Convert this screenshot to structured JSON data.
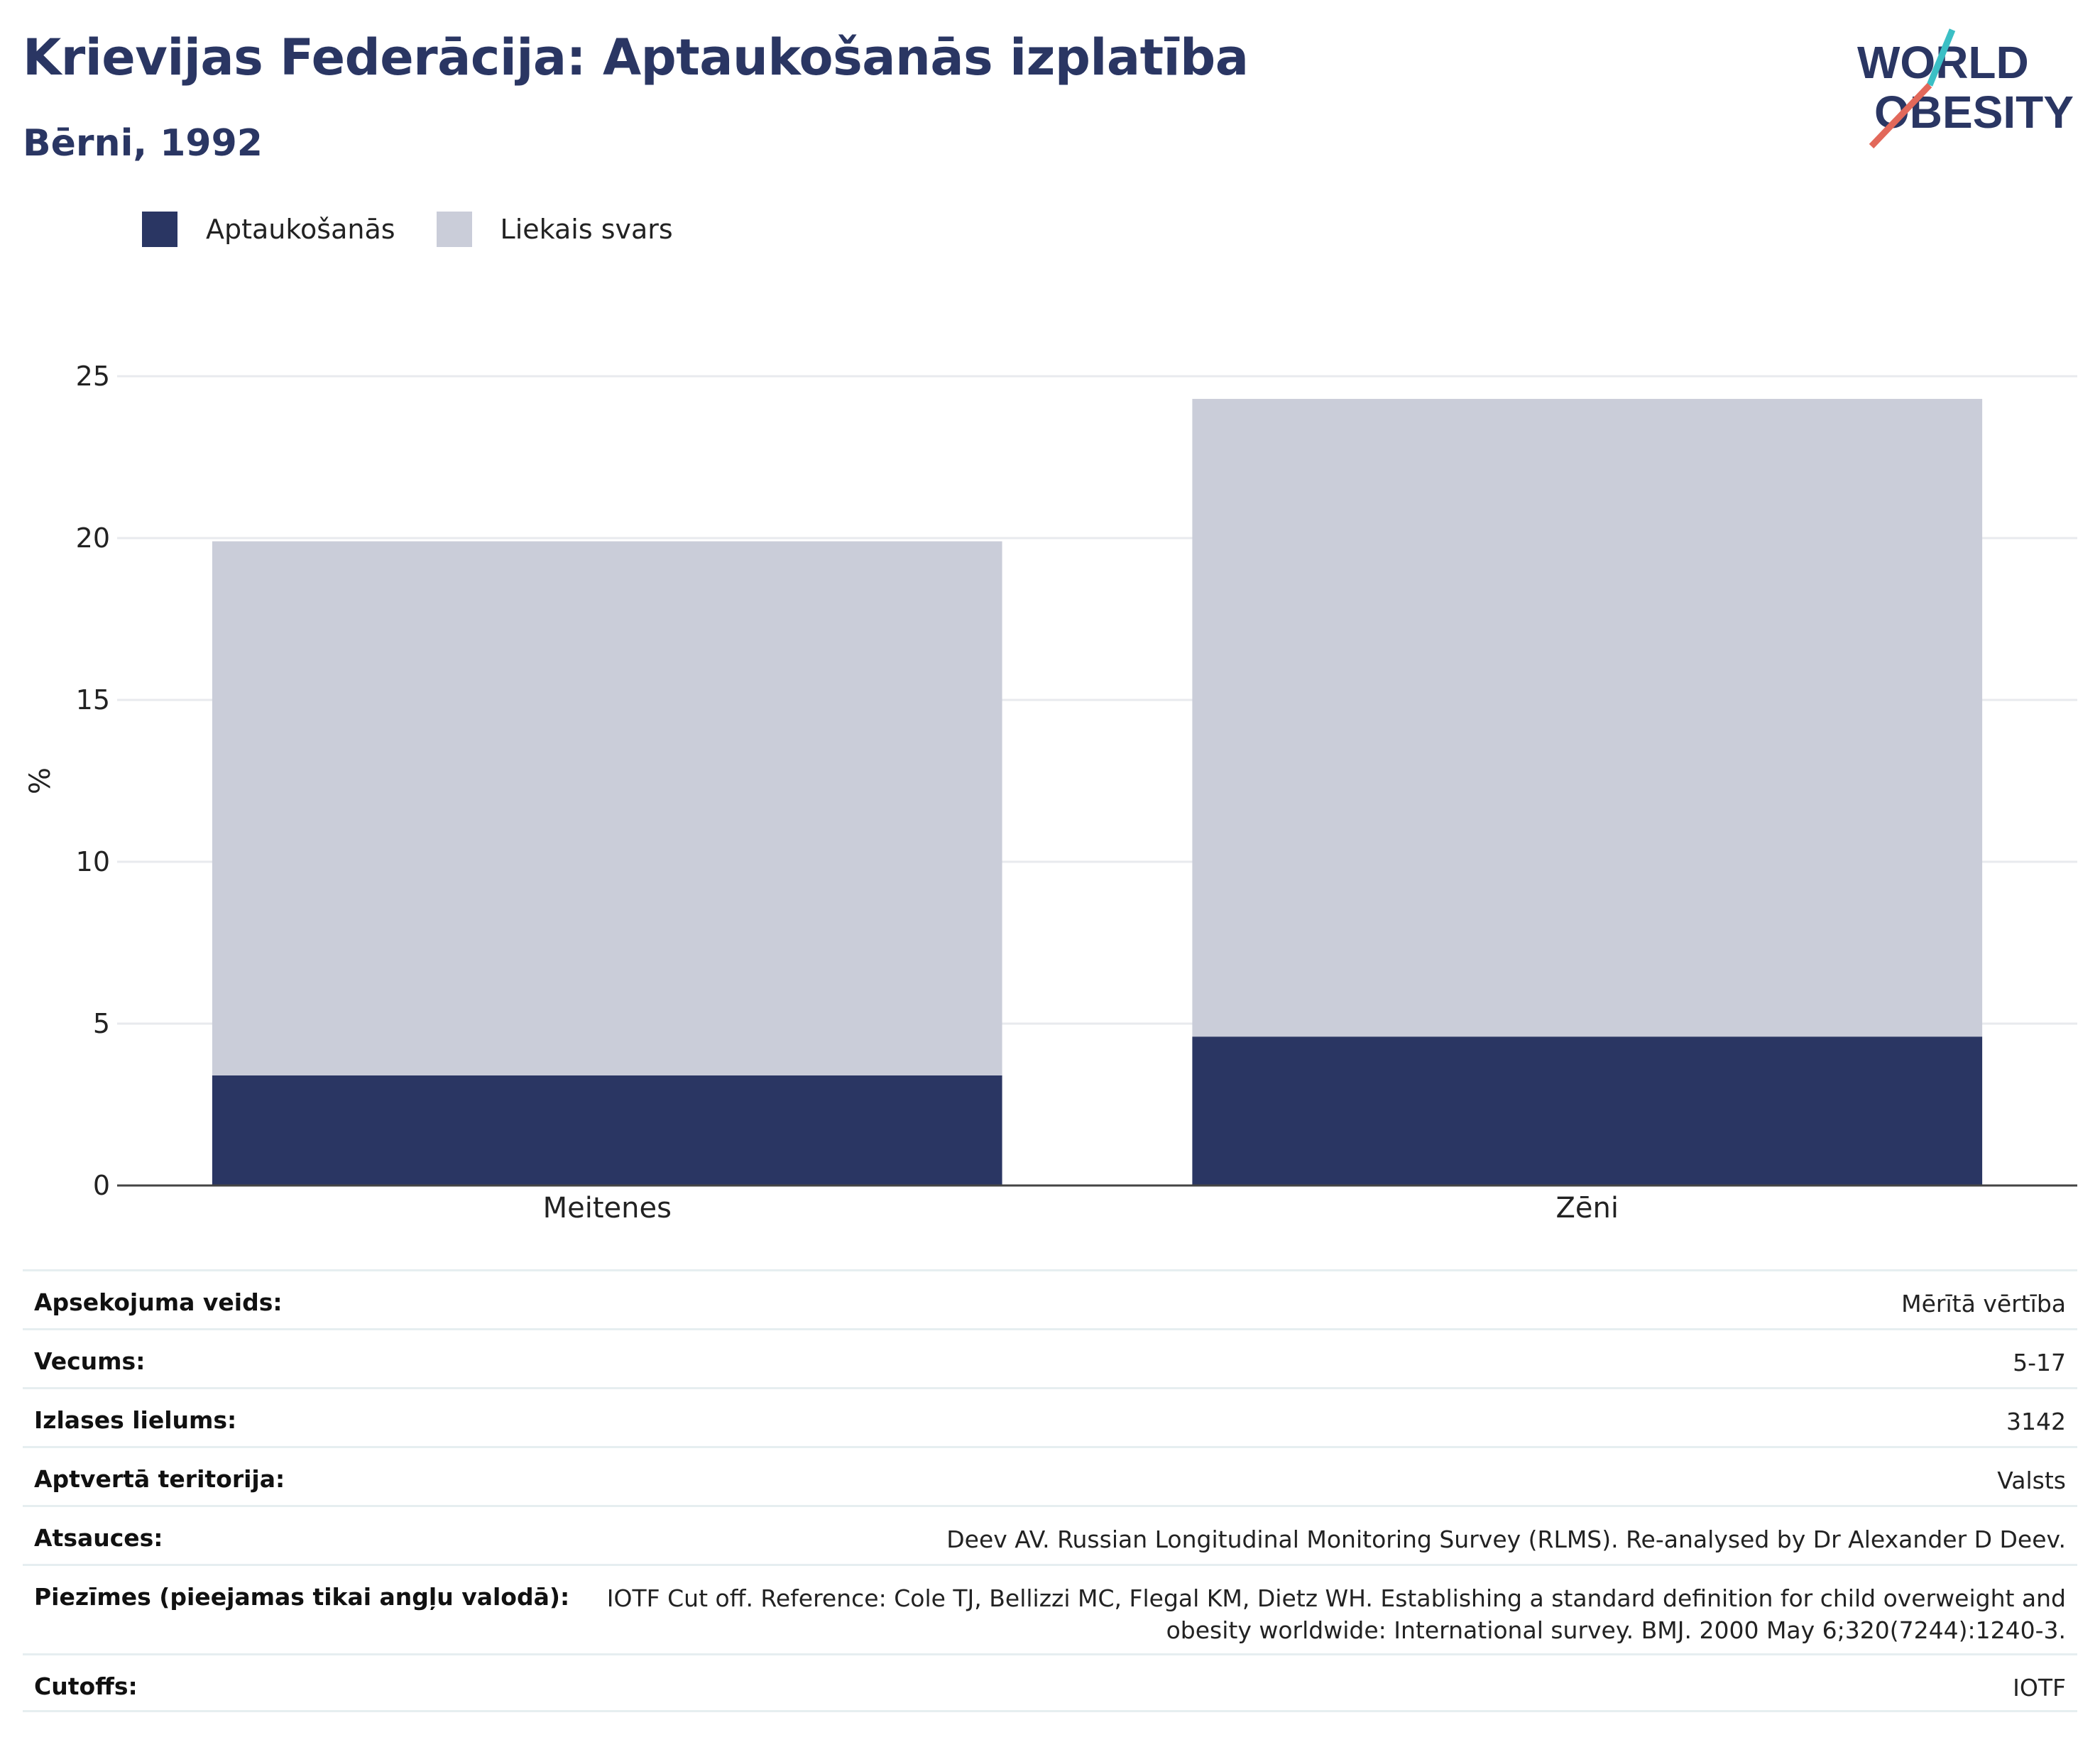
{
  "header": {
    "title": "Krievijas Federācija: Aptaukošanās izplatība",
    "subtitle": "Bērni, 1992"
  },
  "logo": {
    "line1": "WORLD",
    "line2": "OBESITY",
    "accent_colors": [
      "#3bbfc5",
      "#e2685a"
    ]
  },
  "legend": {
    "items": [
      {
        "label": "Aptaukošanās",
        "color": "#2a3663"
      },
      {
        "label": "Liekais svars",
        "color": "#cacdd9"
      }
    ]
  },
  "chart_data": {
    "type": "bar",
    "stacked": true,
    "categories": [
      "Meitenes",
      "Zēni"
    ],
    "series": [
      {
        "name": "Aptaukošanās",
        "values": [
          3.4,
          4.6
        ],
        "color": "#2a3663"
      },
      {
        "name": "Liekais svars",
        "values": [
          16.5,
          19.7
        ],
        "color": "#cacdd9"
      }
    ],
    "ylabel": "%",
    "xlabel": "",
    "ylim": [
      0,
      25
    ],
    "yticks": [
      0,
      5,
      10,
      15,
      20,
      25
    ],
    "grid": true,
    "legend_position": "top-left"
  },
  "info_table": [
    {
      "label": "Apsekojuma veids:",
      "value": "Mērītā vērtība"
    },
    {
      "label": "Vecums:",
      "value": "5-17"
    },
    {
      "label": "Izlases lielums:",
      "value": "3142"
    },
    {
      "label": "Aptvertā teritorija:",
      "value": "Valsts"
    },
    {
      "label": "Atsauces:",
      "value": "Deev AV. Russian Longitudinal Monitoring Survey (RLMS). Re-analysed by Dr Alexander D Deev."
    },
    {
      "label": "Piezīmes (pieejamas tikai angļu valodā):",
      "value": "IOTF Cut off. Reference: Cole TJ, Bellizzi MC, Flegal KM, Dietz WH. Establishing a standard definition for child overweight and obesity worldwide: International survey. BMJ. 2000 May 6;320(7244):1240-3."
    },
    {
      "label": "Cutoffs:",
      "value": "IOTF"
    }
  ]
}
